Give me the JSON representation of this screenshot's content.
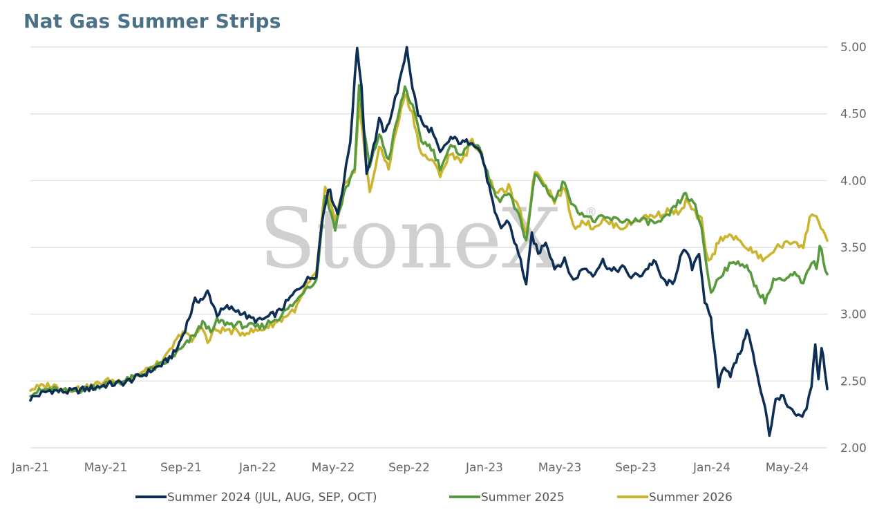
{
  "title": "Nat Gas Summer Strips",
  "watermark": {
    "text": "StoneX",
    "mark": "®"
  },
  "chart_data": {
    "type": "line",
    "title": "Nat Gas Summer Strips",
    "x_ticks": [
      "Jan-21",
      "May-21",
      "Sep-21",
      "Jan-22",
      "May-22",
      "Sep-22",
      "Jan-23",
      "May-23",
      "Sep-23",
      "Jan-24",
      "May-24"
    ],
    "y_ticks": [
      "2.00",
      "2.50",
      "3.00",
      "3.50",
      "4.00",
      "4.50",
      "5.00"
    ],
    "ylim": [
      2.0,
      5.0
    ],
    "xlim": [
      "2021-01-01",
      "2024-06-22"
    ],
    "grid": "horizontal",
    "legend_position": "bottom",
    "series": [
      {
        "name": "Summer 2024 (JUL, AUG, SEP, OCT)",
        "color": "#0d2f55",
        "points": [
          [
            "2021-01-01",
            2.37
          ],
          [
            "2021-02-01",
            2.43
          ],
          [
            "2021-03-01",
            2.42
          ],
          [
            "2021-04-01",
            2.44
          ],
          [
            "2021-05-01",
            2.47
          ],
          [
            "2021-06-01",
            2.49
          ],
          [
            "2021-07-01",
            2.55
          ],
          [
            "2021-08-01",
            2.63
          ],
          [
            "2021-08-20",
            2.72
          ],
          [
            "2021-09-01",
            2.85
          ],
          [
            "2021-09-20",
            3.1
          ],
          [
            "2021-10-05",
            3.12
          ],
          [
            "2021-10-10",
            3.17
          ],
          [
            "2021-10-25",
            3.0
          ],
          [
            "2021-11-10",
            3.05
          ],
          [
            "2021-12-01",
            3.02
          ],
          [
            "2021-12-15",
            2.97
          ],
          [
            "2022-01-01",
            2.95
          ],
          [
            "2022-01-15",
            2.98
          ],
          [
            "2022-02-01",
            3.02
          ],
          [
            "2022-02-15",
            3.1
          ],
          [
            "2022-03-01",
            3.18
          ],
          [
            "2022-03-15",
            3.25
          ],
          [
            "2022-04-01",
            3.3
          ],
          [
            "2022-04-10",
            3.7
          ],
          [
            "2022-04-20",
            3.95
          ],
          [
            "2022-05-05",
            3.75
          ],
          [
            "2022-05-15",
            4.0
          ],
          [
            "2022-05-25",
            4.3
          ],
          [
            "2022-06-05",
            5.0
          ],
          [
            "2022-06-12",
            4.7
          ],
          [
            "2022-06-20",
            4.05
          ],
          [
            "2022-07-01",
            4.25
          ],
          [
            "2022-07-10",
            4.45
          ],
          [
            "2022-07-20",
            4.35
          ],
          [
            "2022-08-01",
            4.55
          ],
          [
            "2022-08-15",
            4.8
          ],
          [
            "2022-08-23",
            5.0
          ],
          [
            "2022-09-01",
            4.7
          ],
          [
            "2022-09-10",
            4.5
          ],
          [
            "2022-09-20",
            4.4
          ],
          [
            "2022-10-01",
            4.38
          ],
          [
            "2022-10-15",
            4.2
          ],
          [
            "2022-11-01",
            4.32
          ],
          [
            "2022-11-20",
            4.28
          ],
          [
            "2022-12-05",
            4.3
          ],
          [
            "2022-12-20",
            4.2
          ],
          [
            "2023-01-01",
            3.95
          ],
          [
            "2023-01-10",
            3.75
          ],
          [
            "2023-01-20",
            3.65
          ],
          [
            "2023-02-01",
            3.7
          ],
          [
            "2023-02-10",
            3.55
          ],
          [
            "2023-02-20",
            3.4
          ],
          [
            "2023-03-01",
            3.22
          ],
          [
            "2023-03-10",
            3.6
          ],
          [
            "2023-03-20",
            3.45
          ],
          [
            "2023-04-01",
            3.55
          ],
          [
            "2023-04-15",
            3.35
          ],
          [
            "2023-05-01",
            3.4
          ],
          [
            "2023-05-15",
            3.25
          ],
          [
            "2023-06-01",
            3.35
          ],
          [
            "2023-06-15",
            3.3
          ],
          [
            "2023-07-01",
            3.4
          ],
          [
            "2023-07-15",
            3.32
          ],
          [
            "2023-08-01",
            3.35
          ],
          [
            "2023-08-15",
            3.28
          ],
          [
            "2023-09-01",
            3.3
          ],
          [
            "2023-09-20",
            3.4
          ],
          [
            "2023-10-05",
            3.25
          ],
          [
            "2023-10-20",
            3.22
          ],
          [
            "2023-11-01",
            3.42
          ],
          [
            "2023-11-10",
            3.48
          ],
          [
            "2023-11-20",
            3.35
          ],
          [
            "2023-12-01",
            3.47
          ],
          [
            "2023-12-10",
            3.1
          ],
          [
            "2023-12-20",
            2.95
          ],
          [
            "2024-01-01",
            2.47
          ],
          [
            "2024-01-10",
            2.62
          ],
          [
            "2024-01-20",
            2.55
          ],
          [
            "2024-02-01",
            2.68
          ],
          [
            "2024-02-10",
            2.78
          ],
          [
            "2024-02-15",
            2.9
          ],
          [
            "2024-02-25",
            2.7
          ],
          [
            "2024-03-05",
            2.48
          ],
          [
            "2024-03-15",
            2.32
          ],
          [
            "2024-03-22",
            2.1
          ],
          [
            "2024-04-01",
            2.35
          ],
          [
            "2024-04-10",
            2.4
          ],
          [
            "2024-04-20",
            2.3
          ],
          [
            "2024-05-01",
            2.25
          ],
          [
            "2024-05-10",
            2.22
          ],
          [
            "2024-05-20",
            2.28
          ],
          [
            "2024-05-28",
            2.48
          ],
          [
            "2024-06-03",
            2.78
          ],
          [
            "2024-06-08",
            2.5
          ],
          [
            "2024-06-13",
            2.75
          ],
          [
            "2024-06-18",
            2.6
          ],
          [
            "2024-06-22",
            2.44
          ]
        ]
      },
      {
        "name": "Summer 2025",
        "color": "#5a9a3f",
        "points": [
          [
            "2021-01-01",
            2.41
          ],
          [
            "2021-02-01",
            2.44
          ],
          [
            "2021-03-01",
            2.42
          ],
          [
            "2021-04-01",
            2.44
          ],
          [
            "2021-05-01",
            2.48
          ],
          [
            "2021-06-01",
            2.5
          ],
          [
            "2021-07-01",
            2.56
          ],
          [
            "2021-08-01",
            2.63
          ],
          [
            "2021-09-01",
            2.75
          ],
          [
            "2021-09-20",
            2.85
          ],
          [
            "2021-10-05",
            2.95
          ],
          [
            "2021-10-15",
            2.85
          ],
          [
            "2021-10-25",
            2.95
          ],
          [
            "2021-11-10",
            2.93
          ],
          [
            "2021-12-01",
            2.92
          ],
          [
            "2022-01-01",
            2.9
          ],
          [
            "2022-02-01",
            2.98
          ],
          [
            "2022-03-01",
            3.1
          ],
          [
            "2022-03-15",
            3.2
          ],
          [
            "2022-04-01",
            3.25
          ],
          [
            "2022-04-15",
            3.9
          ],
          [
            "2022-05-01",
            3.65
          ],
          [
            "2022-05-15",
            3.9
          ],
          [
            "2022-06-01",
            4.1
          ],
          [
            "2022-06-08",
            4.7
          ],
          [
            "2022-06-15",
            4.4
          ],
          [
            "2022-06-25",
            4.1
          ],
          [
            "2022-07-10",
            4.35
          ],
          [
            "2022-07-25",
            4.15
          ],
          [
            "2022-08-05",
            4.4
          ],
          [
            "2022-08-20",
            4.7
          ],
          [
            "2022-09-01",
            4.55
          ],
          [
            "2022-09-15",
            4.3
          ],
          [
            "2022-10-01",
            4.25
          ],
          [
            "2022-10-15",
            4.1
          ],
          [
            "2022-11-01",
            4.25
          ],
          [
            "2022-11-20",
            4.2
          ],
          [
            "2022-12-05",
            4.3
          ],
          [
            "2022-12-20",
            4.2
          ],
          [
            "2023-01-01",
            4.0
          ],
          [
            "2023-01-15",
            3.85
          ],
          [
            "2023-02-01",
            3.9
          ],
          [
            "2023-02-20",
            3.7
          ],
          [
            "2023-03-01",
            3.55
          ],
          [
            "2023-03-15",
            4.05
          ],
          [
            "2023-04-01",
            3.95
          ],
          [
            "2023-04-15",
            3.85
          ],
          [
            "2023-05-01",
            4.0
          ],
          [
            "2023-05-15",
            3.8
          ],
          [
            "2023-06-01",
            3.75
          ],
          [
            "2023-06-15",
            3.7
          ],
          [
            "2023-07-01",
            3.72
          ],
          [
            "2023-08-01",
            3.7
          ],
          [
            "2023-09-01",
            3.7
          ],
          [
            "2023-10-01",
            3.68
          ],
          [
            "2023-10-15",
            3.75
          ],
          [
            "2023-11-01",
            3.85
          ],
          [
            "2023-11-10",
            3.9
          ],
          [
            "2023-11-25",
            3.8
          ],
          [
            "2023-12-05",
            3.65
          ],
          [
            "2023-12-12",
            3.4
          ],
          [
            "2023-12-20",
            3.15
          ],
          [
            "2024-01-01",
            3.28
          ],
          [
            "2024-01-15",
            3.35
          ],
          [
            "2024-02-01",
            3.4
          ],
          [
            "2024-02-15",
            3.35
          ],
          [
            "2024-03-01",
            3.2
          ],
          [
            "2024-03-15",
            3.1
          ],
          [
            "2024-04-01",
            3.28
          ],
          [
            "2024-04-15",
            3.25
          ],
          [
            "2024-05-01",
            3.3
          ],
          [
            "2024-05-15",
            3.22
          ],
          [
            "2024-05-28",
            3.4
          ],
          [
            "2024-06-05",
            3.35
          ],
          [
            "2024-06-10",
            3.52
          ],
          [
            "2024-06-16",
            3.4
          ],
          [
            "2024-06-22",
            3.3
          ]
        ]
      },
      {
        "name": "Summer 2026",
        "color": "#cbb530",
        "points": [
          [
            "2021-01-01",
            2.44
          ],
          [
            "2021-02-01",
            2.47
          ],
          [
            "2021-03-01",
            2.44
          ],
          [
            "2021-04-01",
            2.45
          ],
          [
            "2021-05-01",
            2.5
          ],
          [
            "2021-06-01",
            2.5
          ],
          [
            "2021-07-01",
            2.57
          ],
          [
            "2021-08-01",
            2.65
          ],
          [
            "2021-09-01",
            2.88
          ],
          [
            "2021-09-15",
            2.8
          ],
          [
            "2021-10-01",
            2.92
          ],
          [
            "2021-10-10",
            2.78
          ],
          [
            "2021-10-20",
            2.88
          ],
          [
            "2021-11-10",
            2.88
          ],
          [
            "2021-12-01",
            2.86
          ],
          [
            "2022-01-01",
            2.88
          ],
          [
            "2022-02-01",
            2.95
          ],
          [
            "2022-03-01",
            3.05
          ],
          [
            "2022-03-15",
            3.2
          ],
          [
            "2022-04-01",
            3.3
          ],
          [
            "2022-04-15",
            3.95
          ],
          [
            "2022-05-01",
            3.7
          ],
          [
            "2022-05-15",
            3.95
          ],
          [
            "2022-06-01",
            4.05
          ],
          [
            "2022-06-08",
            4.6
          ],
          [
            "2022-06-15",
            4.3
          ],
          [
            "2022-06-25",
            3.9
          ],
          [
            "2022-07-10",
            4.25
          ],
          [
            "2022-07-25",
            4.1
          ],
          [
            "2022-08-05",
            4.35
          ],
          [
            "2022-08-20",
            4.65
          ],
          [
            "2022-09-01",
            4.5
          ],
          [
            "2022-09-15",
            4.2
          ],
          [
            "2022-10-01",
            4.15
          ],
          [
            "2022-10-15",
            4.05
          ],
          [
            "2022-11-01",
            4.2
          ],
          [
            "2022-11-20",
            4.15
          ],
          [
            "2022-12-05",
            4.3
          ],
          [
            "2022-12-20",
            4.2
          ],
          [
            "2023-01-01",
            4.0
          ],
          [
            "2023-01-15",
            3.9
          ],
          [
            "2023-02-01",
            3.95
          ],
          [
            "2023-02-20",
            3.75
          ],
          [
            "2023-03-01",
            3.6
          ],
          [
            "2023-03-15",
            4.08
          ],
          [
            "2023-04-01",
            3.98
          ],
          [
            "2023-04-15",
            3.85
          ],
          [
            "2023-05-01",
            3.95
          ],
          [
            "2023-05-15",
            3.65
          ],
          [
            "2023-06-01",
            3.7
          ],
          [
            "2023-06-15",
            3.65
          ],
          [
            "2023-07-01",
            3.7
          ],
          [
            "2023-08-01",
            3.65
          ],
          [
            "2023-09-01",
            3.72
          ],
          [
            "2023-10-01",
            3.75
          ],
          [
            "2023-10-15",
            3.78
          ],
          [
            "2023-11-01",
            3.75
          ],
          [
            "2023-11-10",
            3.85
          ],
          [
            "2023-11-25",
            3.75
          ],
          [
            "2023-12-05",
            3.7
          ],
          [
            "2023-12-12",
            3.45
          ],
          [
            "2023-12-20",
            3.4
          ],
          [
            "2024-01-01",
            3.55
          ],
          [
            "2024-01-15",
            3.6
          ],
          [
            "2024-02-01",
            3.55
          ],
          [
            "2024-02-15",
            3.5
          ],
          [
            "2024-03-01",
            3.45
          ],
          [
            "2024-03-15",
            3.4
          ],
          [
            "2024-04-01",
            3.5
          ],
          [
            "2024-04-15",
            3.52
          ],
          [
            "2024-05-01",
            3.55
          ],
          [
            "2024-05-15",
            3.5
          ],
          [
            "2024-05-25",
            3.72
          ],
          [
            "2024-06-05",
            3.75
          ],
          [
            "2024-06-12",
            3.65
          ],
          [
            "2024-06-18",
            3.6
          ],
          [
            "2024-06-22",
            3.55
          ]
        ]
      }
    ]
  }
}
